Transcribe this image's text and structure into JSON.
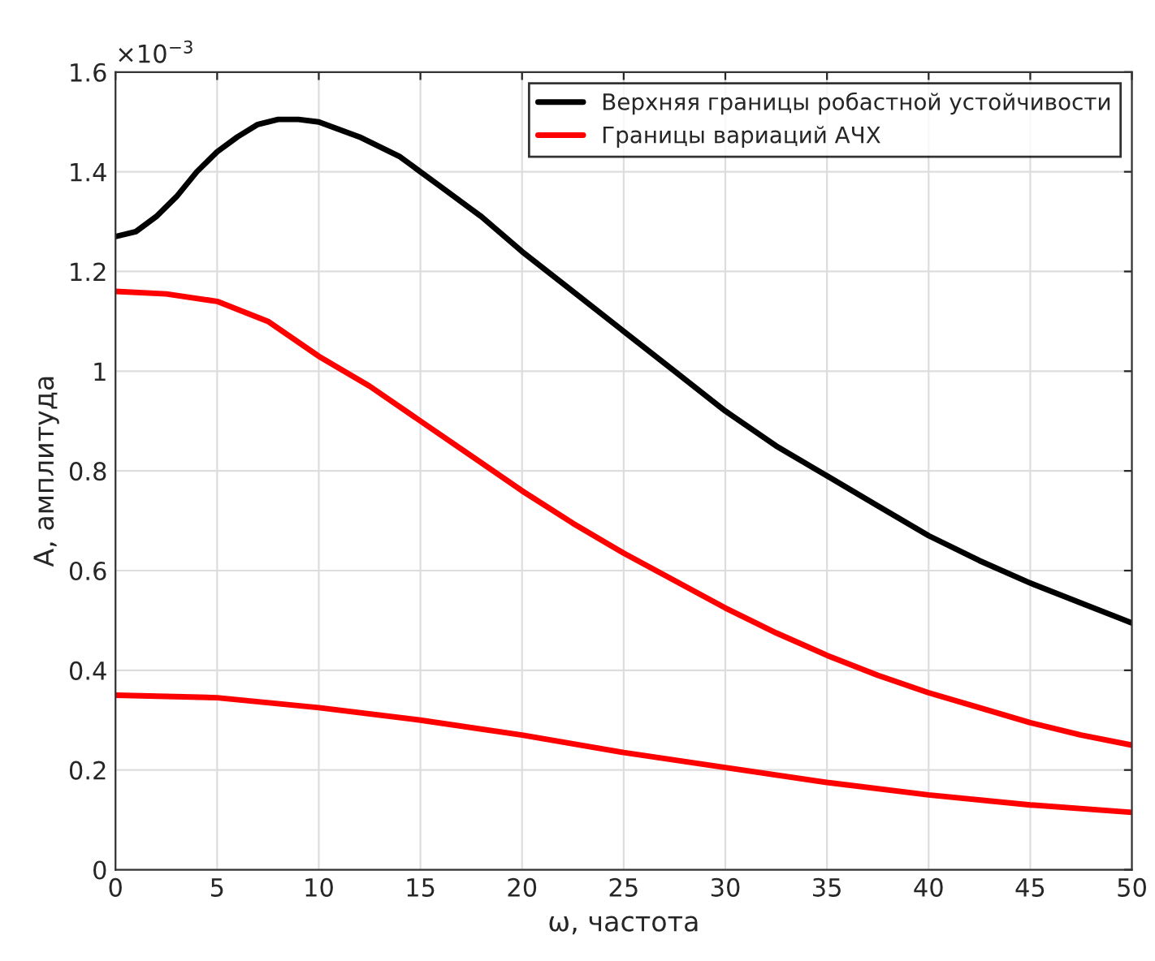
{
  "chart_data": {
    "type": "line",
    "xlabel": "ω, частота",
    "ylabel": "А, амплитуда",
    "annotations": [
      "×10$^{−3}$"
    ],
    "series": [
      {
        "name": "Верхняя границы робастной устойчивости",
        "color": "#000000",
        "x": [
          0,
          1,
          2,
          3,
          4,
          5,
          6,
          7,
          8,
          9,
          10,
          12,
          14,
          16,
          18,
          20,
          22.5,
          25,
          27.5,
          30,
          32.5,
          35,
          37.5,
          40,
          42.5,
          45,
          47.5,
          50
        ],
        "values": [
          1.27,
          1.28,
          1.31,
          1.35,
          1.4,
          1.44,
          1.47,
          1.495,
          1.505,
          1.505,
          1.5,
          1.47,
          1.43,
          1.37,
          1.31,
          1.24,
          1.16,
          1.08,
          1.0,
          0.92,
          0.85,
          0.79,
          0.73,
          0.67,
          0.62,
          0.575,
          0.535,
          0.495
        ]
      },
      {
        "name": "Границы вариаций АЧХ",
        "color": "#ff0000",
        "x": [
          0,
          2.5,
          5,
          7.5,
          10,
          12.5,
          15,
          17.5,
          20,
          22.5,
          25,
          27.5,
          30,
          32.5,
          35,
          37.5,
          40,
          42.5,
          45,
          47.5,
          50
        ],
        "values": [
          1.16,
          1.155,
          1.14,
          1.1,
          1.03,
          0.97,
          0.9,
          0.83,
          0.76,
          0.695,
          0.635,
          0.58,
          0.525,
          0.475,
          0.43,
          0.39,
          0.355,
          0.325,
          0.295,
          0.27,
          0.25
        ]
      },
      {
        "color": "#ff0000",
        "x": [
          0,
          5,
          10,
          15,
          20,
          25,
          30,
          35,
          40,
          45,
          50
        ],
        "values": [
          0.35,
          0.345,
          0.325,
          0.3,
          0.27,
          0.235,
          0.205,
          0.175,
          0.15,
          0.13,
          0.115
        ]
      }
    ],
    "xlim": [
      0,
      50
    ],
    "xticks": [
      0,
      5,
      10,
      15,
      20,
      25,
      30,
      35,
      40,
      45,
      50
    ],
    "ylim": [
      0,
      1.6
    ],
    "yticks": [
      0,
      0.2,
      0.4,
      0.6,
      0.8,
      1,
      1.2,
      1.4,
      1.6
    ],
    "grid": true,
    "legend": "top right",
    "line_style": "solid",
    "marker": "none"
  }
}
